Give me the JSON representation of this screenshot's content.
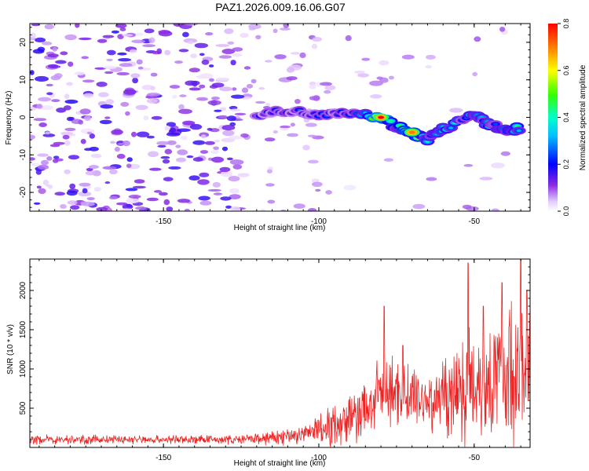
{
  "figure_title": "PAZ1.2026.009.16.06.G07",
  "chart_data": [
    {
      "type": "heatmap",
      "title": "PAZ1.2026.009.16.06.G07",
      "xlabel": "Height of straight line (km)",
      "ylabel": "Frequency (Hz)",
      "xlim": [
        -193,
        -32
      ],
      "ylim": [
        -25,
        25
      ],
      "x_ticks": [
        -150,
        -100,
        -50
      ],
      "y_ticks": [
        -20,
        -10,
        0,
        10,
        20
      ],
      "colorbar": {
        "label": "Normalized spectral amplitude",
        "range": [
          0,
          0.8
        ],
        "ticks": [
          "0.0",
          "0.2",
          "0.4",
          "0.6",
          "0.8"
        ]
      },
      "signal_ridge": [
        {
          "x": -120,
          "f": 1.0,
          "amp": 0.25
        },
        {
          "x": -110,
          "f": 1.5,
          "amp": 0.3
        },
        {
          "x": -100,
          "f": 1.0,
          "amp": 0.32
        },
        {
          "x": -90,
          "f": 1.5,
          "amp": 0.3
        },
        {
          "x": -80,
          "f": 0.0,
          "amp": 0.8
        },
        {
          "x": -75,
          "f": -2.5,
          "amp": 0.5
        },
        {
          "x": -70,
          "f": -4.0,
          "amp": 0.7
        },
        {
          "x": -65,
          "f": -6.0,
          "amp": 0.4
        },
        {
          "x": -60,
          "f": -3.0,
          "amp": 0.45
        },
        {
          "x": -50,
          "f": 0.5,
          "amp": 0.4
        },
        {
          "x": -45,
          "f": -2.0,
          "amp": 0.45
        },
        {
          "x": -40,
          "f": -3.5,
          "amp": 0.4
        },
        {
          "x": -35,
          "f": -3.0,
          "amp": 0.45
        }
      ]
    },
    {
      "type": "line",
      "xlabel": "Height of straight line (km)",
      "ylabel": "SNR (10 * v/v)",
      "xlim": [
        -193,
        -32
      ],
      "ylim": [
        0,
        2400
      ],
      "x_ticks": [
        -150,
        -100,
        -50
      ],
      "y_ticks": [
        500,
        1000,
        1500,
        2000
      ],
      "series": [
        {
          "name": "SNR",
          "color": "#ee2222",
          "envelope": [
            {
              "x": -193,
              "base": 100,
              "amp": 70
            },
            {
              "x": -125,
              "base": 100,
              "amp": 70
            },
            {
              "x": -115,
              "base": 120,
              "amp": 110
            },
            {
              "x": -105,
              "base": 160,
              "amp": 180
            },
            {
              "x": -95,
              "base": 300,
              "amp": 350
            },
            {
              "x": -85,
              "base": 450,
              "amp": 450
            },
            {
              "x": -80,
              "base": 700,
              "amp": 600
            },
            {
              "x": -75,
              "base": 700,
              "amp": 500
            },
            {
              "x": -70,
              "base": 650,
              "amp": 500
            },
            {
              "x": -65,
              "base": 600,
              "amp": 550
            },
            {
              "x": -60,
              "base": 650,
              "amp": 650
            },
            {
              "x": -55,
              "base": 750,
              "amp": 800
            },
            {
              "x": -50,
              "base": 850,
              "amp": 900
            },
            {
              "x": -45,
              "base": 900,
              "amp": 1000
            },
            {
              "x": -40,
              "base": 950,
              "amp": 1100
            },
            {
              "x": -35,
              "base": 1000,
              "amp": 1200
            },
            {
              "x": -32,
              "base": 1000,
              "amp": 1200
            }
          ],
          "peaks": [
            {
              "x": -79,
              "y": 1800
            },
            {
              "x": -73,
              "y": 1300
            },
            {
              "x": -52,
              "y": 2350
            },
            {
              "x": -47,
              "y": 1800
            },
            {
              "x": -41,
              "y": 2100
            },
            {
              "x": -35,
              "y": 2400
            },
            {
              "x": -33,
              "y": 2000
            }
          ]
        }
      ]
    }
  ]
}
